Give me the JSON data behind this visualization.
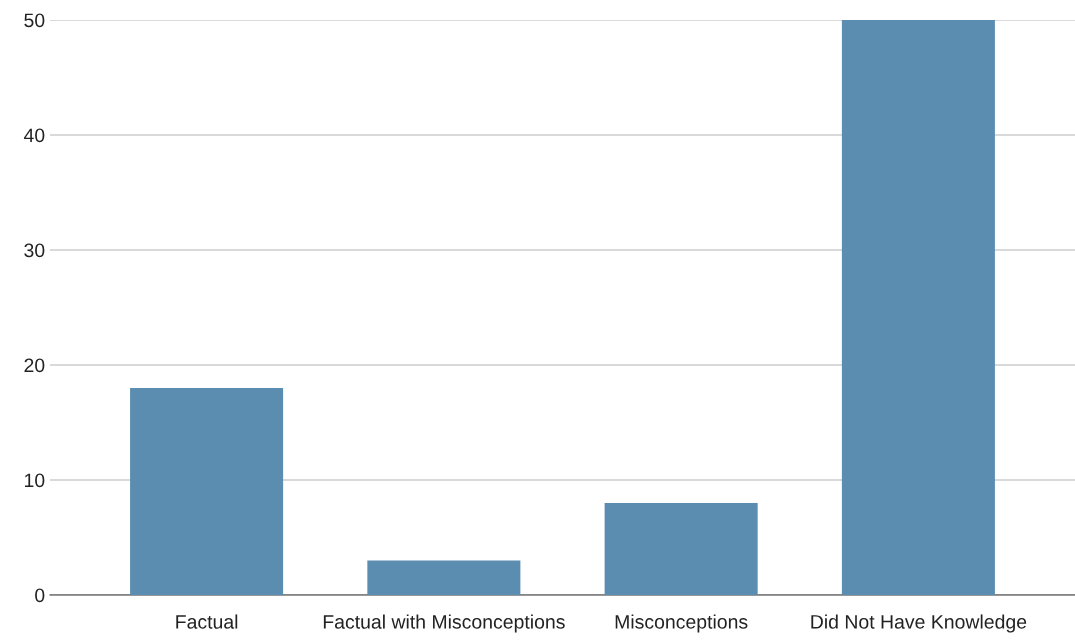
{
  "chart_data": {
    "type": "bar",
    "categories": [
      "Factual",
      "Factual with Misconceptions",
      "Misconceptions",
      "Did Not Have Knowledge"
    ],
    "values": [
      18,
      3,
      8,
      50
    ],
    "color": "#5a8db0",
    "ylim": [
      0,
      50
    ],
    "yticks": [
      0,
      10,
      20,
      30,
      40,
      50
    ],
    "grid": "y"
  }
}
